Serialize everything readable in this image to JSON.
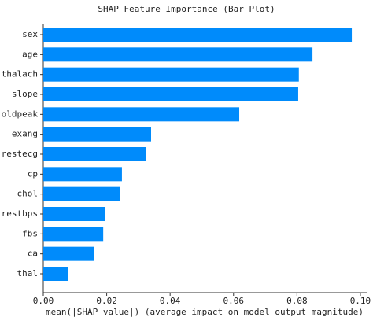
{
  "chart_data": {
    "type": "barh",
    "title": "SHAP Feature Importance (Bar Plot)",
    "x_label": "mean(|SHAP value|) (average impact on model output magnitude)",
    "categories": [
      "sex",
      "age",
      "thalach",
      "slope",
      "oldpeak",
      "exang",
      "restecg",
      "cp",
      "chol",
      "trestbps",
      "fbs",
      "ca",
      "thal"
    ],
    "values": [
      0.0973,
      0.0849,
      0.0806,
      0.0804,
      0.0618,
      0.034,
      0.0323,
      0.0248,
      0.0243,
      0.0196,
      0.0189,
      0.0161,
      0.0079
    ],
    "color": "#008bfb",
    "xlim": [
      0,
      0.102
    ],
    "xticks": [
      {
        "value": 0,
        "label": "0.00"
      },
      {
        "value": 0.02,
        "label": "0.02"
      },
      {
        "value": 0.04,
        "label": "0.04"
      },
      {
        "value": 0.06,
        "label": "0.06"
      },
      {
        "value": 0.08,
        "label": "0.08"
      },
      {
        "value": 0.1,
        "label": "0.10"
      }
    ],
    "grid": false
  }
}
